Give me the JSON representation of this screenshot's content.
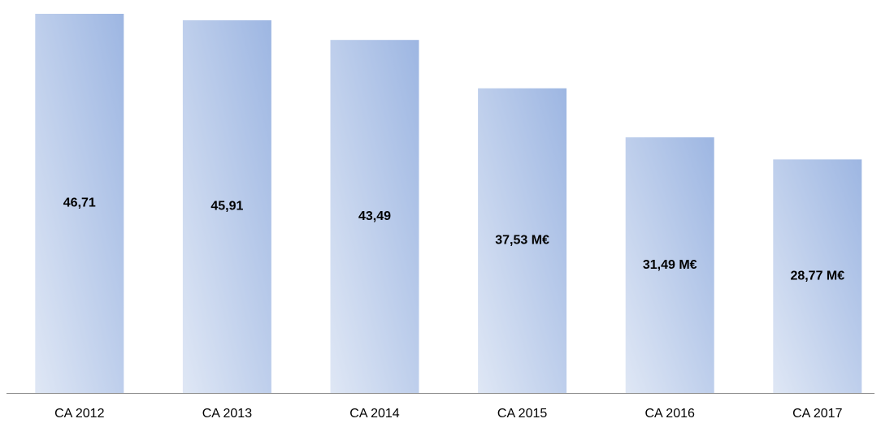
{
  "chart_data": {
    "type": "bar",
    "categories": [
      "CA 2012",
      "CA 2013",
      "CA 2014",
      "CA 2015",
      "CA 2016",
      "CA 2017"
    ],
    "values": [
      46.71,
      45.91,
      43.49,
      37.53,
      31.49,
      28.77
    ],
    "value_labels": [
      "46,71",
      "45,91",
      "43,49",
      "37,53 M€",
      "31,49 M€",
      "28,77 M€"
    ],
    "color": "#9db6e2"
  }
}
